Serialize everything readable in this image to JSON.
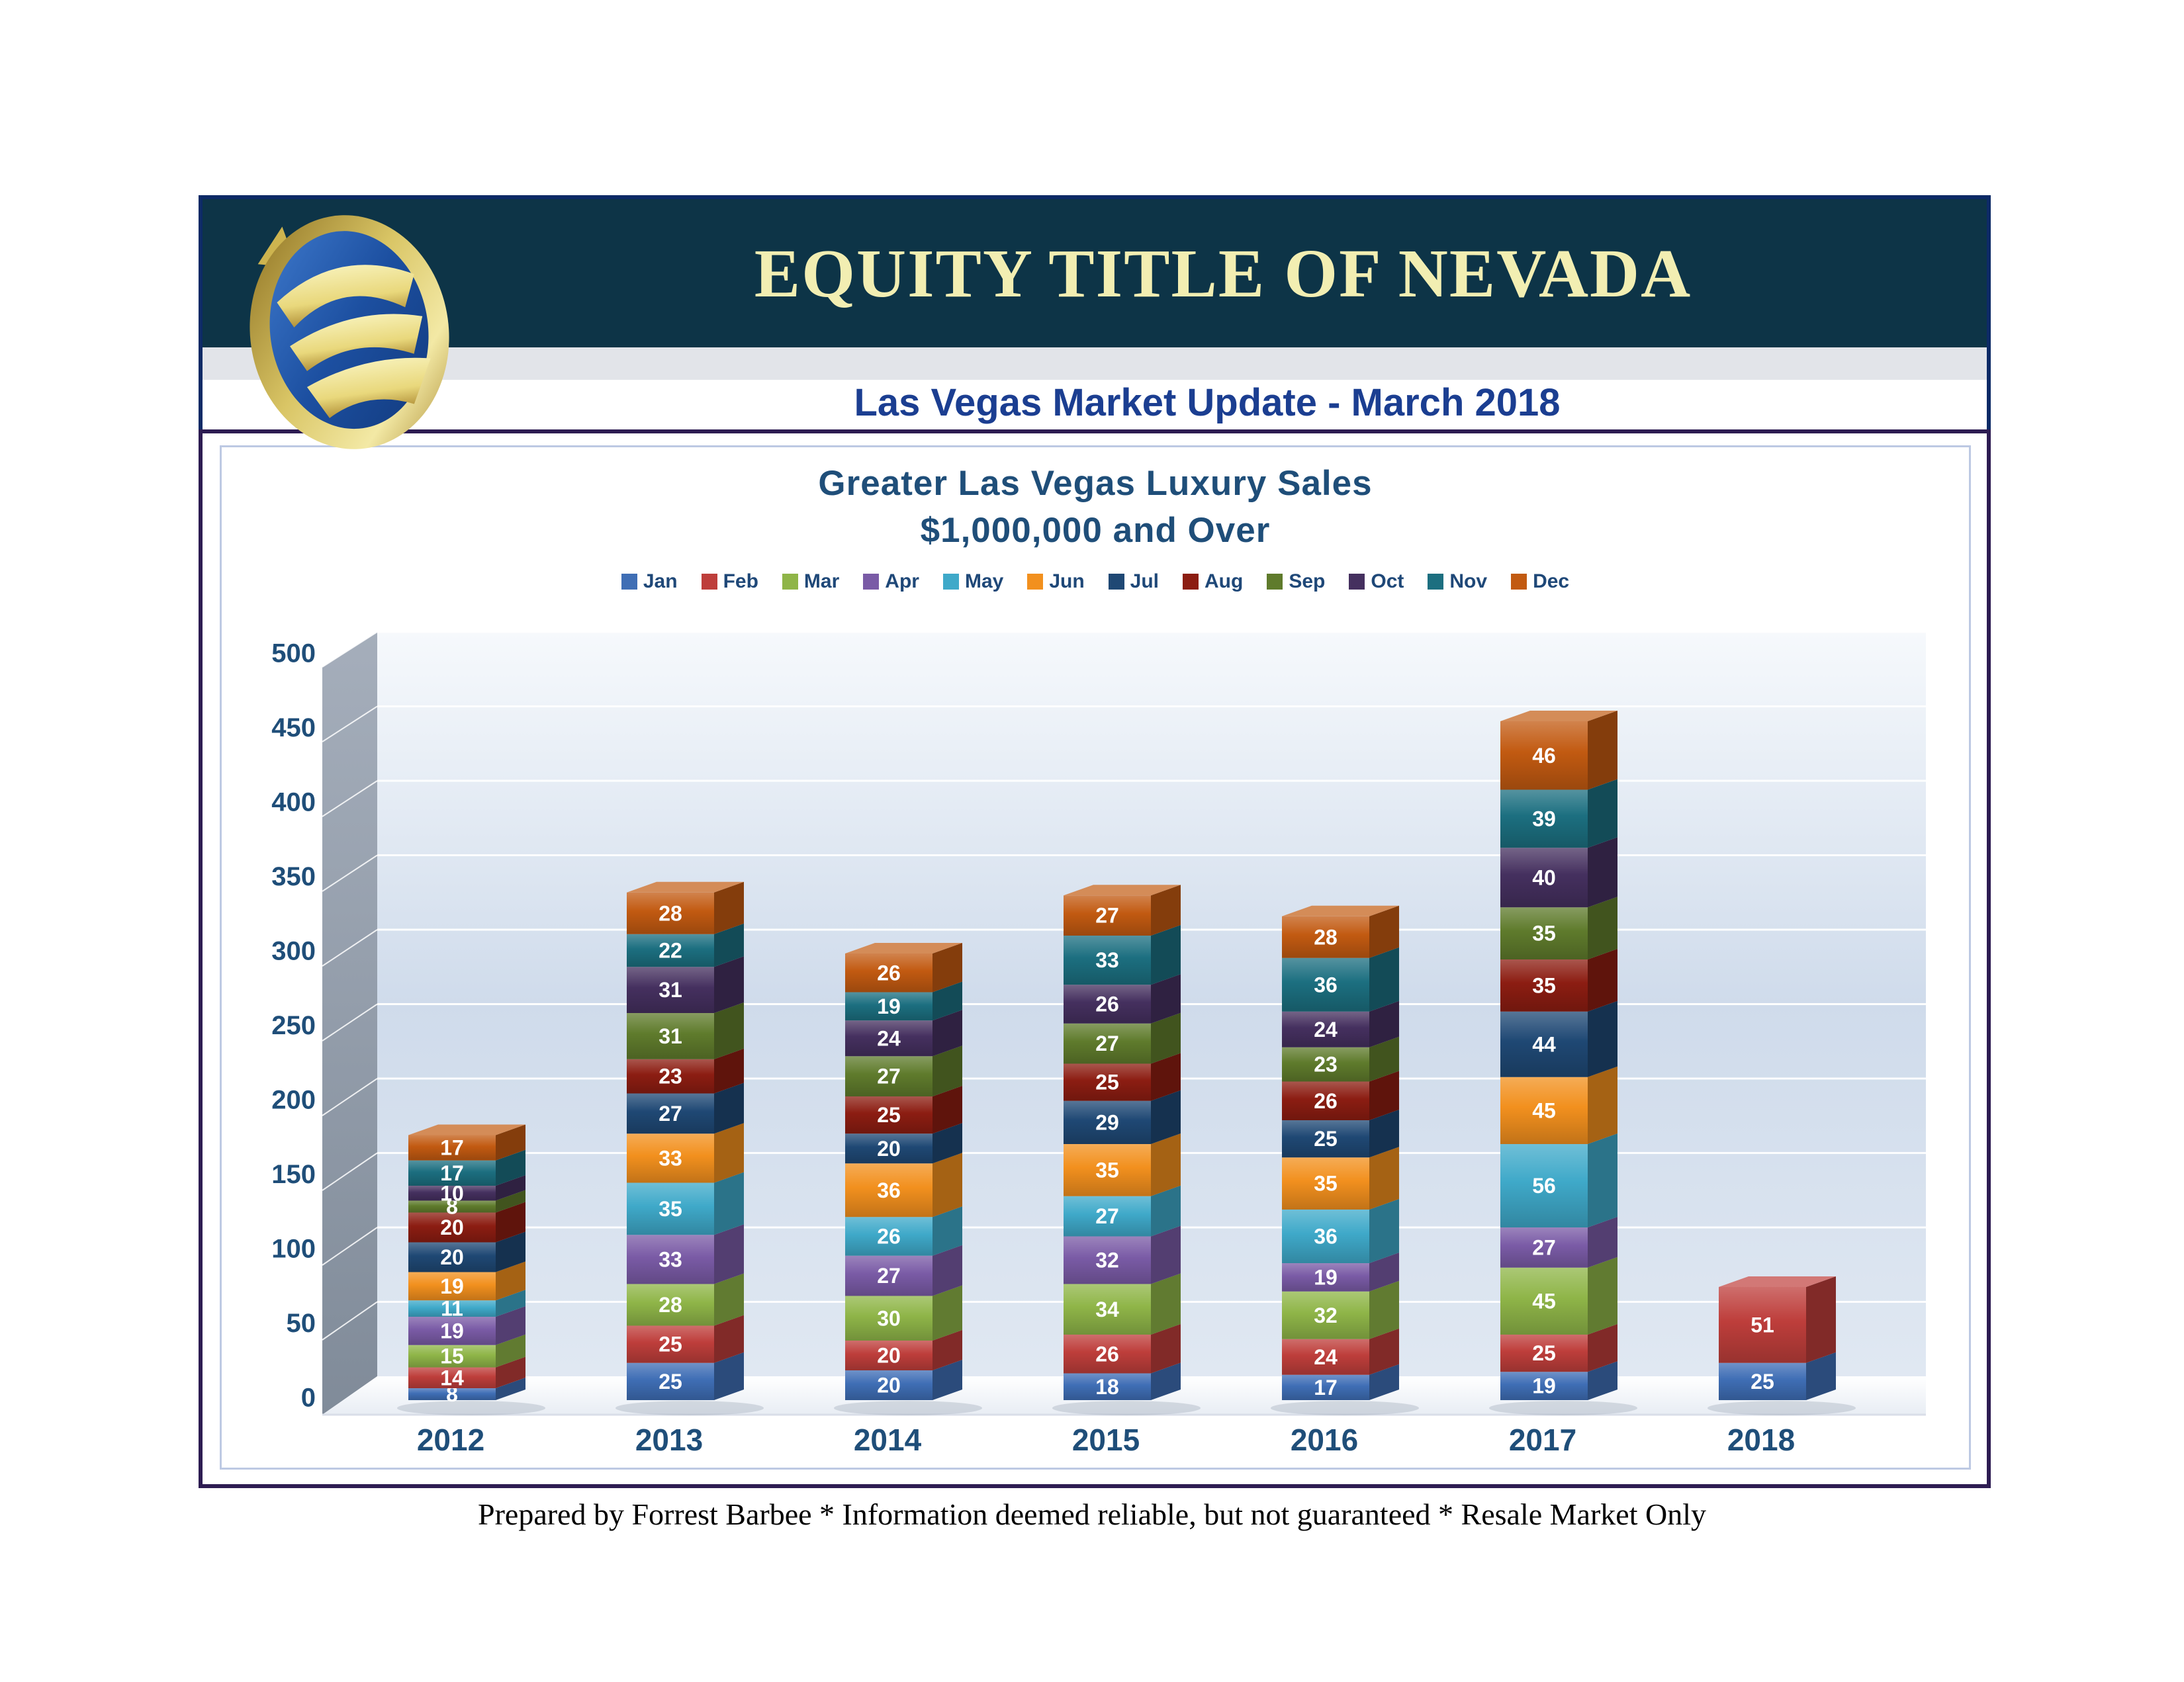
{
  "header": {
    "brand": "EQUITY TITLE OF NEVADA",
    "subtitle": "Las Vegas Market Update - March 2018"
  },
  "chart": {
    "title_line1": "Greater Las Vegas Luxury Sales",
    "title_line2": "$1,000,000 and Over"
  },
  "footer": {
    "text": "Prepared by Forrest Barbee * Information deemed reliable, but not guaranteed * Resale Market Only"
  },
  "colors": {
    "header_band": "#0D3447",
    "brand_text": "#F2EEB2",
    "subtitle_text": "#1B3E91",
    "header_border": "#0D2A66",
    "frame_purple": "#2D1C52",
    "chart_box_border": "#BDC9E3",
    "axis_text": "#1F4E79",
    "legend_text": "#1F4878"
  },
  "chart_data": {
    "type": "bar",
    "stacked": true,
    "title": "Greater Las Vegas Luxury Sales $1,000,000 and Over",
    "categories": [
      "2012",
      "2013",
      "2014",
      "2015",
      "2016",
      "2017",
      "2018"
    ],
    "series": [
      {
        "name": "Jan",
        "color": "#3F6EB5",
        "values": [
          8,
          25,
          20,
          18,
          17,
          19,
          25
        ]
      },
      {
        "name": "Feb",
        "color": "#BE3E3B",
        "values": [
          14,
          25,
          20,
          26,
          24,
          25,
          51
        ]
      },
      {
        "name": "Mar",
        "color": "#8FB548",
        "values": [
          15,
          28,
          30,
          34,
          32,
          45,
          null
        ]
      },
      {
        "name": "Apr",
        "color": "#7A5BA6",
        "values": [
          19,
          33,
          27,
          32,
          19,
          27,
          null
        ]
      },
      {
        "name": "May",
        "color": "#3FA9C9",
        "values": [
          11,
          35,
          26,
          27,
          36,
          56,
          null
        ]
      },
      {
        "name": "Jun",
        "color": "#F2901E",
        "values": [
          19,
          33,
          36,
          35,
          35,
          45,
          null
        ]
      },
      {
        "name": "Jul",
        "color": "#1F4874",
        "values": [
          20,
          27,
          20,
          29,
          25,
          44,
          null
        ]
      },
      {
        "name": "Aug",
        "color": "#8C1D12",
        "values": [
          20,
          23,
          25,
          25,
          26,
          35,
          null
        ]
      },
      {
        "name": "Sep",
        "color": "#5F7B2C",
        "values": [
          8,
          31,
          27,
          27,
          23,
          35,
          null
        ]
      },
      {
        "name": "Oct",
        "color": "#45305F",
        "values": [
          10,
          31,
          24,
          26,
          24,
          40,
          null
        ]
      },
      {
        "name": "Nov",
        "color": "#1C6F80",
        "values": [
          17,
          22,
          19,
          33,
          36,
          39,
          null
        ]
      },
      {
        "name": "Dec",
        "color": "#C25A11",
        "values": [
          17,
          28,
          26,
          27,
          28,
          46,
          null
        ]
      }
    ],
    "ylim": [
      0,
      500
    ],
    "ytick_step": 50,
    "grid": true,
    "legend_position": "top",
    "value_labels": true
  }
}
